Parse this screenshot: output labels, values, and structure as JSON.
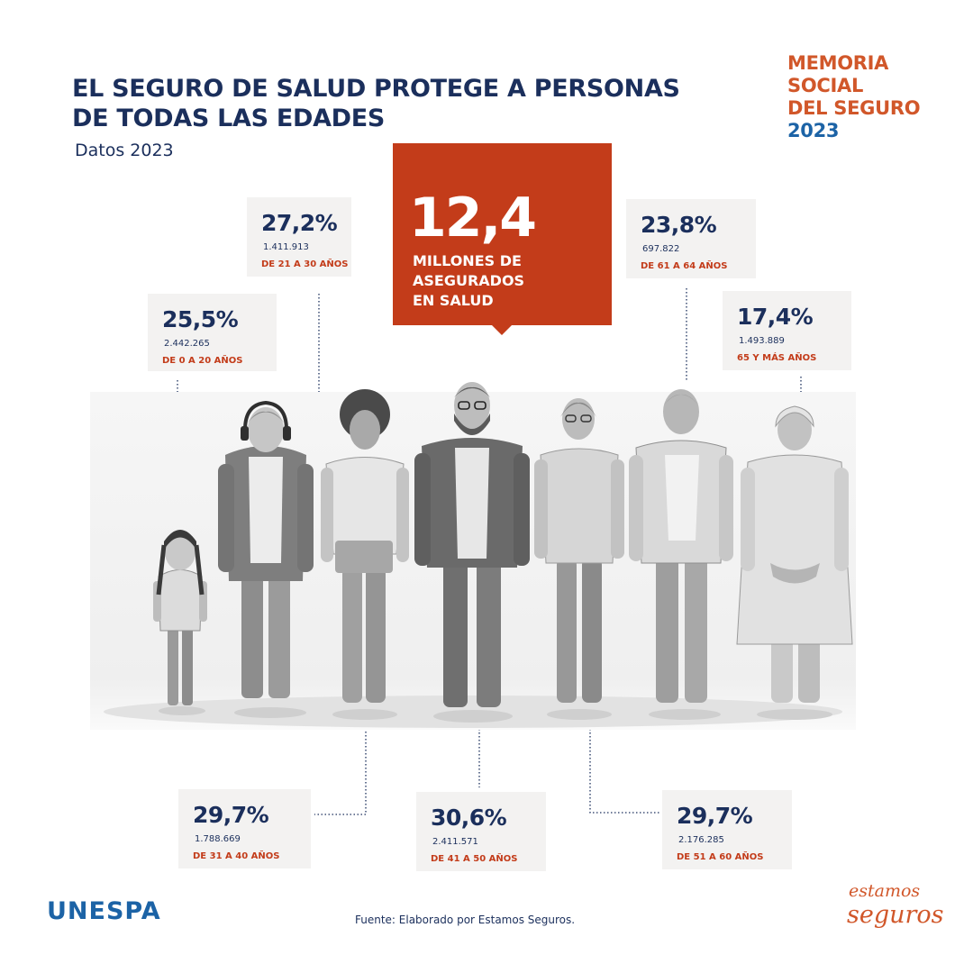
{
  "header": {
    "title_line1": "EL SEGURO DE SALUD PROTEGE A PERSONAS",
    "title_line2": "DE TODAS LAS EDADES",
    "subtitle": "Datos 2023"
  },
  "badge": {
    "line1": "MEMORIA",
    "line2": "SOCIAL",
    "line3": "DEL SEGURO",
    "year": "2023"
  },
  "hero": {
    "value": "12,4",
    "line1": "MILLONES DE",
    "line2": "ASEGURADOS",
    "line3": "EN SALUD"
  },
  "stats": [
    {
      "id": "0-20",
      "percent": "25,5%",
      "count": "2.442.265",
      "range": "DE 0 A 20 AÑOS"
    },
    {
      "id": "21-30",
      "percent": "27,2%",
      "count": "1.411.913",
      "range": "DE 21 A 30 AÑOS"
    },
    {
      "id": "31-40",
      "percent": "29,7%",
      "count": "1.788.669",
      "range": "DE 31 A 40 AÑOS"
    },
    {
      "id": "41-50",
      "percent": "30,6%",
      "count": "2.411.571",
      "range": "DE 41 A 50 AÑOS"
    },
    {
      "id": "51-60",
      "percent": "29,7%",
      "count": "2.176.285",
      "range": "DE 51 A 60 AÑOS"
    },
    {
      "id": "61-64",
      "percent": "23,8%",
      "count": "697.822",
      "range": "DE 61 A 64 AÑOS"
    },
    {
      "id": "65plus",
      "percent": "17,4%",
      "count": "1.493.889",
      "range": "65 Y MÁS AÑOS"
    }
  ],
  "footer": {
    "logo_left": "UNESPA",
    "source": "Fuente: Elaborado por Estamos Seguros.",
    "logo_right_line1": "estamos",
    "logo_right_line2": "seguros"
  },
  "colors": {
    "navy": "#1b2f5c",
    "brand_red": "#c33c1a",
    "orange": "#d1572a",
    "blue": "#1c63a6",
    "card_bg": "#f3f2f1"
  },
  "illustration": {
    "description_icons": [
      "child-figure",
      "young-man-figure",
      "young-woman-figure",
      "bearded-man-figure",
      "woman-figure",
      "older-man-figure",
      "elderly-woman-figure"
    ]
  }
}
